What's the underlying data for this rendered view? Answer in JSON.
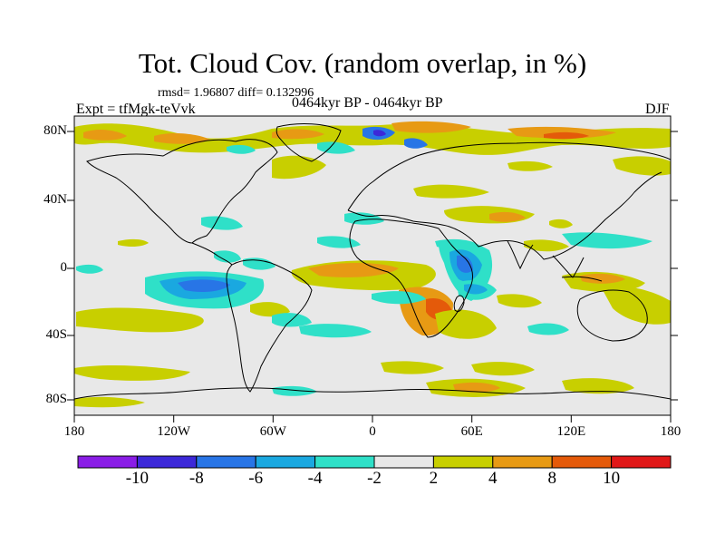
{
  "header": {
    "title": "Tot. Cloud Cov. (random overlap, in %)",
    "stats": "rmsd= 1.96807 diff= 0.132996",
    "experiment": "Expt = tfMgk-teVvk",
    "period": "0464kyr BP - 0464kyr BP",
    "season": "DJF"
  },
  "axes": {
    "lat_labels": [
      "80N",
      "40N",
      "0",
      "40S",
      "80S"
    ],
    "lon_labels": [
      "180",
      "120W",
      "60W",
      "0",
      "60E",
      "120E",
      "180"
    ]
  },
  "colorbar": {
    "labels": [
      "-10",
      "-8",
      "-6",
      "-4",
      "-2",
      "2",
      "4",
      "8",
      "10"
    ],
    "colors": [
      "#8a1de6",
      "#3c28d8",
      "#2875e6",
      "#1aa8e0",
      "#2fe0c8",
      "#e8e8e8",
      "#c8cf00",
      "#e79a14",
      "#e45a0a",
      "#e01818"
    ]
  }
}
